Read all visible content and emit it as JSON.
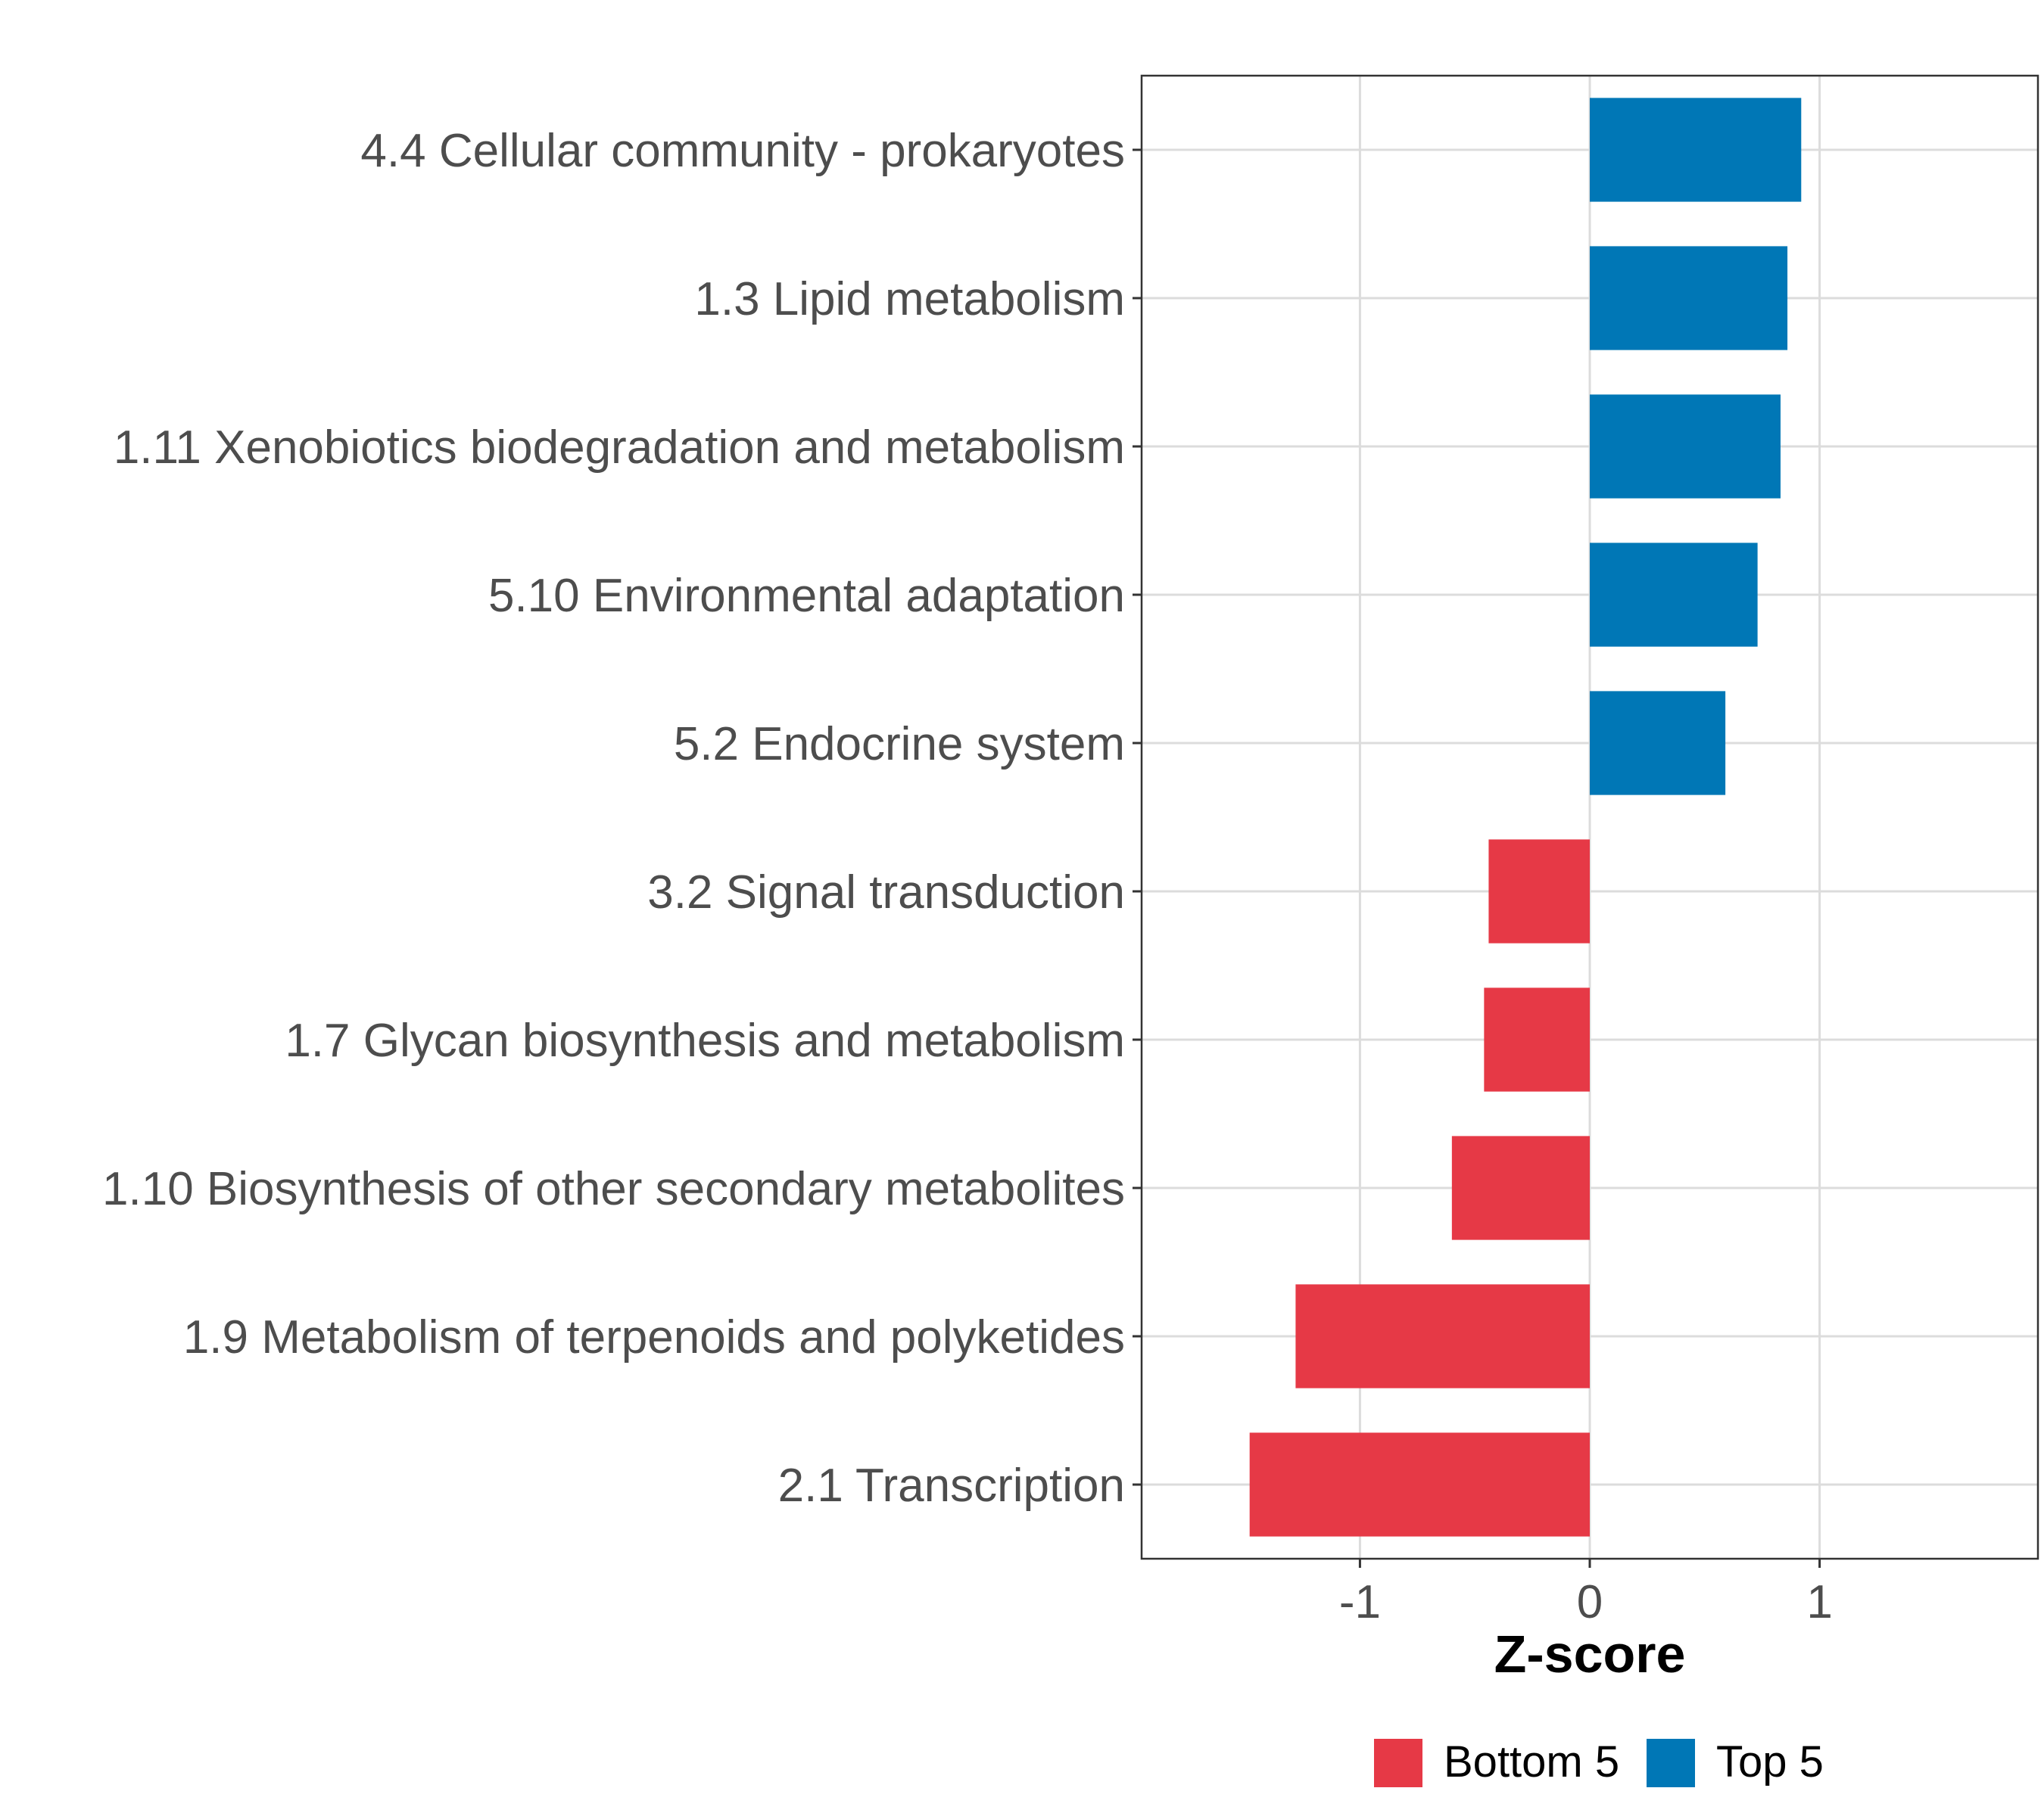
{
  "chart_data": {
    "type": "bar",
    "orientation": "horizontal",
    "title": "",
    "xlabel": "Z-score",
    "ylabel": "",
    "xlim": [
      -1.95,
      1.95
    ],
    "xticks": [
      -1,
      0,
      1
    ],
    "xtick_labels": [
      "-1",
      "0",
      "1"
    ],
    "grid": true,
    "categories": [
      "4.4 Cellular community - prokaryotes",
      "1.3 Lipid metabolism",
      "1.11 Xenobiotics biodegradation and metabolism",
      "5.10 Environmental adaptation",
      "5.2 Endocrine system",
      "3.2 Signal transduction",
      "1.7 Glycan biosynthesis and metabolism",
      "1.10 Biosynthesis of other secondary metabolites",
      "1.9 Metabolism of terpenoids and polyketides",
      "2.1 Transcription"
    ],
    "values": [
      0.92,
      0.86,
      0.83,
      0.73,
      0.59,
      -0.44,
      -0.46,
      -0.6,
      -1.28,
      -1.48
    ],
    "groups": [
      "Top 5",
      "Top 5",
      "Top 5",
      "Top 5",
      "Top 5",
      "Bottom 5",
      "Bottom 5",
      "Bottom 5",
      "Bottom 5",
      "Bottom 5"
    ],
    "legend": {
      "position": "bottom",
      "entries": [
        {
          "label": "Bottom 5",
          "color": "#e63946"
        },
        {
          "label": "Top 5",
          "color": "#0077b6"
        }
      ]
    }
  }
}
